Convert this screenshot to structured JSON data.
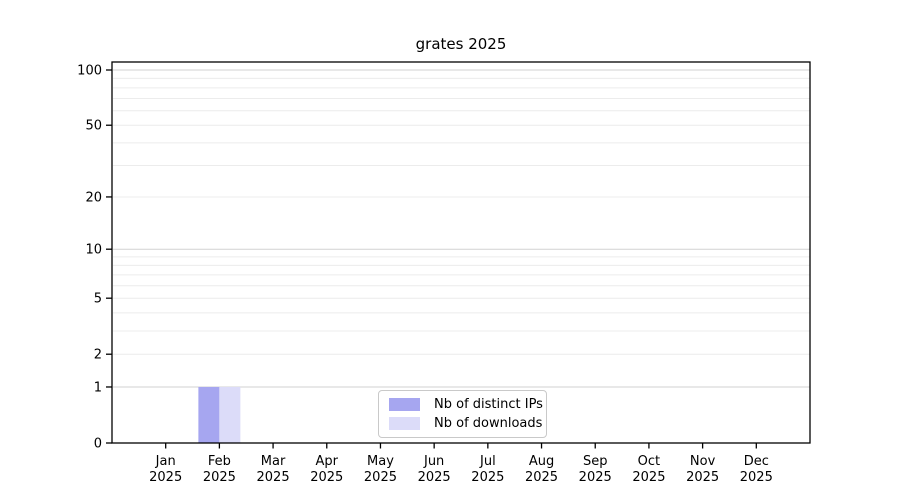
{
  "chart_data": {
    "type": "bar",
    "title": "grates 2025",
    "categories": [
      "Jan",
      "Feb",
      "Mar",
      "Apr",
      "May",
      "Jun",
      "Jul",
      "Aug",
      "Sep",
      "Oct",
      "Nov",
      "Dec"
    ],
    "x_year_label": "2025",
    "series": [
      {
        "name": "Nb of distinct IPs",
        "color": "#a6a6f0",
        "values": [
          0,
          1,
          0,
          0,
          0,
          0,
          0,
          0,
          0,
          0,
          0,
          0
        ]
      },
      {
        "name": "Nb of downloads",
        "color": "#dcdcf9",
        "values": [
          0,
          1,
          0,
          0,
          0,
          0,
          0,
          0,
          0,
          0,
          0,
          0
        ]
      }
    ],
    "y_scale": "log(1+y)",
    "y_ticks": [
      0,
      1,
      2,
      5,
      10,
      20,
      50,
      100
    ],
    "y_grid_major": [
      1,
      10,
      100
    ],
    "y_grid_minor": [
      2,
      3,
      4,
      5,
      6,
      7,
      8,
      9,
      20,
      30,
      40,
      50,
      60,
      70,
      80,
      90
    ],
    "ylim": [
      0,
      110
    ],
    "xlabel": "",
    "ylabel": "",
    "grid": true,
    "legend_position": "lower center"
  },
  "colors": {
    "axis": "#000000",
    "tick_label": "#000000",
    "grid_major": "#d2d2d2",
    "grid_minor": "#ececec",
    "background": "#ffffff",
    "legend_border": "#c9c9c9"
  }
}
